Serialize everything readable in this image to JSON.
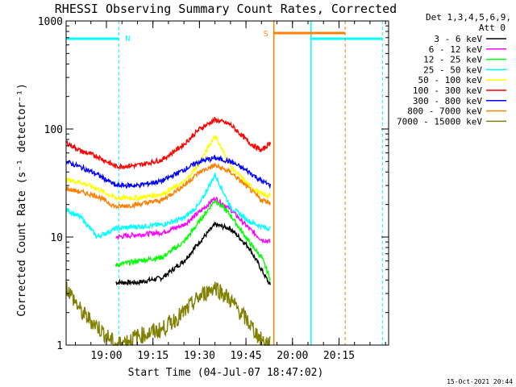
{
  "chart_data": {
    "type": "line",
    "title": "RHESSI Observing Summary Count Rates, Corrected",
    "xlabel": "Start Time (04-Jul-07 18:47:02)",
    "ylabel": "Corrected Count Rate (s⁻¹ detector⁻¹)",
    "y_scale": "log",
    "ylim": [
      1,
      1000
    ],
    "xlim": [
      "18:47",
      "20:31"
    ],
    "x_tick_labels": [
      "19:00",
      "19:15",
      "19:30",
      "19:45",
      "20:00",
      "20:15"
    ],
    "y_tick_labels": [
      "1",
      "10",
      "100",
      "1000"
    ],
    "legend_header": [
      "Det 1,3,4,5,6,9,",
      "Att 0"
    ],
    "legend_position": "right",
    "footer_date": "15-Oct-2021 20:44",
    "markers": {
      "night_label": "N",
      "saa_label": "S"
    },
    "night_intervals": [
      [
        "18:47",
        "19:04"
      ],
      [
        "20:06",
        "20:29"
      ]
    ],
    "saa_interval": [
      "19:54",
      "20:17"
    ],
    "data_gap": [
      "19:54",
      "20:28"
    ],
    "series": [
      {
        "name": "3 - 6 keV",
        "color": "#000000",
        "x": [
          "19:03",
          "19:10",
          "19:18",
          "19:25",
          "19:30",
          "19:35",
          "19:40",
          "19:46",
          "19:50",
          "19:53"
        ],
        "values": [
          3.8,
          3.8,
          4.2,
          6,
          9,
          13,
          12,
          8,
          5,
          3.5
        ]
      },
      {
        "name": "6 - 12 keV",
        "color": "#ff00ff",
        "x": [
          "19:03",
          "19:10",
          "19:18",
          "19:25",
          "19:30",
          "19:35",
          "19:40",
          "19:46",
          "19:50",
          "19:53"
        ],
        "values": [
          10,
          10.5,
          11,
          13,
          17,
          23,
          18,
          12,
          9.5,
          9
        ]
      },
      {
        "name": "12 - 25 keV",
        "color": "#00ff00",
        "x": [
          "19:03",
          "19:10",
          "19:18",
          "19:25",
          "19:30",
          "19:35",
          "19:40",
          "19:46",
          "19:50",
          "19:53"
        ],
        "values": [
          5.5,
          6,
          6.5,
          9,
          14,
          22,
          16,
          9,
          6.5,
          4
        ]
      },
      {
        "name": "25 - 50 keV",
        "color": "#00ffff",
        "x": [
          "18:47",
          "18:52",
          "18:57",
          "19:03",
          "19:10",
          "19:18",
          "19:25",
          "19:30",
          "19:35",
          "19:40",
          "19:46",
          "19:50",
          "19:53"
        ],
        "values": [
          18,
          15,
          10,
          12,
          12.5,
          13,
          15,
          20,
          38,
          19,
          14,
          12.5,
          12
        ]
      },
      {
        "name": "50 - 100 keV",
        "color": "#ffff00",
        "x": [
          "18:47",
          "18:52",
          "18:57",
          "19:03",
          "19:10",
          "19:18",
          "19:25",
          "19:30",
          "19:35",
          "19:40",
          "19:46",
          "19:50",
          "19:53"
        ],
        "values": [
          34,
          32,
          28,
          23,
          23,
          25,
          32,
          48,
          88,
          45,
          30,
          25,
          24
        ]
      },
      {
        "name": "100 - 300 keV",
        "color": "#ff0000",
        "x": [
          "18:47",
          "18:52",
          "18:57",
          "19:03",
          "19:10",
          "19:18",
          "19:25",
          "19:30",
          "19:35",
          "19:40",
          "19:46",
          "19:50",
          "19:53"
        ],
        "values": [
          75,
          62,
          56,
          45,
          46,
          52,
          72,
          100,
          122,
          110,
          75,
          63,
          75
        ]
      },
      {
        "name": "300 - 800 keV",
        "color": "#0000ff",
        "x": [
          "18:47",
          "18:52",
          "18:57",
          "19:03",
          "19:10",
          "19:18",
          "19:25",
          "19:30",
          "19:35",
          "19:40",
          "19:46",
          "19:50",
          "19:53"
        ],
        "values": [
          50,
          44,
          38,
          30,
          30,
          33,
          42,
          50,
          54,
          50,
          40,
          33,
          30
        ]
      },
      {
        "name": "800 - 7000 keV",
        "color": "#ff8000",
        "x": [
          "18:47",
          "18:52",
          "18:57",
          "19:03",
          "19:10",
          "19:18",
          "19:25",
          "19:30",
          "19:35",
          "19:40",
          "19:46",
          "19:50",
          "19:53"
        ],
        "values": [
          28,
          26,
          24,
          19,
          20,
          22,
          30,
          40,
          46,
          40,
          28,
          22,
          21
        ]
      },
      {
        "name": "7000 - 15000 keV",
        "color": "#808000",
        "x": [
          "18:47",
          "18:52",
          "18:57",
          "19:03",
          "19:10",
          "19:18",
          "19:25",
          "19:30",
          "19:35",
          "19:40",
          "19:46",
          "19:50",
          "19:53"
        ],
        "values": [
          3.5,
          2,
          1.5,
          1,
          1.2,
          1.4,
          2,
          2.8,
          3.5,
          2.6,
          1.6,
          1.1,
          1
        ]
      }
    ]
  }
}
